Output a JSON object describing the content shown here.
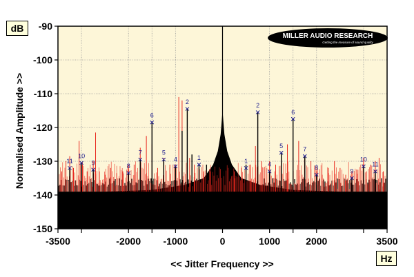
{
  "chart_data": {
    "type": "line",
    "y_unit": "dB",
    "x_unit": "Hz",
    "ylabel": "Normalised Amplitude >>",
    "xlabel": "<< Jitter Frequency >>",
    "xlim": [
      -3500,
      3500
    ],
    "ylim": [
      -150,
      -90
    ],
    "x_ticks": [
      {
        "value": -3500,
        "label": "-3500"
      },
      {
        "value": -2000,
        "label": "-2000"
      },
      {
        "value": -1000,
        "label": "-1000"
      },
      {
        "value": 0,
        "label": "0"
      },
      {
        "value": 1000,
        "label": "1000"
      },
      {
        "value": 2000,
        "label": "2000"
      },
      {
        "value": 3500,
        "label": "3500"
      }
    ],
    "x_minor_ticks": [
      -3000,
      -1500,
      1500,
      3000
    ],
    "y_ticks": [
      {
        "value": -90,
        "label": "-90"
      },
      {
        "value": -100,
        "label": "-100"
      },
      {
        "value": -110,
        "label": "-110"
      },
      {
        "value": -120,
        "label": "-120"
      },
      {
        "value": -130,
        "label": "-130"
      },
      {
        "value": -140,
        "label": "-140"
      },
      {
        "value": -150,
        "label": "-150"
      }
    ],
    "grid": true,
    "plot_bg_color": "#fdf6d8",
    "noise_floor_db": -139,
    "series": [
      {
        "color": "#000000",
        "spectrum": [
          {
            "x": -3500,
            "y": -139
          },
          {
            "x": -2500,
            "y": -139
          },
          {
            "x": -1500,
            "y": -138.5
          },
          {
            "x": -800,
            "y": -137
          },
          {
            "x": -400,
            "y": -135
          },
          {
            "x": -200,
            "y": -131
          },
          {
            "x": -100,
            "y": -127
          },
          {
            "x": -40,
            "y": -122
          },
          {
            "x": 0,
            "y": -115
          },
          {
            "x": 40,
            "y": -122
          },
          {
            "x": 100,
            "y": -127
          },
          {
            "x": 200,
            "y": -131
          },
          {
            "x": 400,
            "y": -135
          },
          {
            "x": 800,
            "y": -137
          },
          {
            "x": 1500,
            "y": -138.5
          },
          {
            "x": 2500,
            "y": -139
          },
          {
            "x": 3500,
            "y": -139
          }
        ],
        "spikes": [
          {
            "x": 0,
            "y": -90
          },
          {
            "x": -750,
            "y": -114.5
          },
          {
            "x": 750,
            "y": -115.5
          },
          {
            "x": -1500,
            "y": -118.5
          },
          {
            "x": 1500,
            "y": -117.5
          },
          {
            "x": -1750,
            "y": -129.5
          },
          {
            "x": 1750,
            "y": -128.5
          },
          {
            "x": -1000,
            "y": -131.5
          },
          {
            "x": -1250,
            "y": -129.5
          },
          {
            "x": 1250,
            "y": -127.5
          },
          {
            "x": 1000,
            "y": -133
          },
          {
            "x": -500,
            "y": -131
          },
          {
            "x": 500,
            "y": -131
          },
          {
            "x": -3000,
            "y": -130.5
          },
          {
            "x": 3000,
            "y": -131.5
          },
          {
            "x": -2000,
            "y": -133.5
          },
          {
            "x": 2000,
            "y": -134
          },
          {
            "x": -3250,
            "y": -132
          },
          {
            "x": 3250,
            "y": -133
          },
          {
            "x": -2750,
            "y": -132.5
          },
          {
            "x": 2750,
            "y": -135
          },
          {
            "x": -860,
            "y": -121
          },
          {
            "x": -650,
            "y": -128
          },
          {
            "x": -340,
            "y": -131
          }
        ]
      },
      {
        "color": "#e8281e",
        "spikes": [
          {
            "x": -3420,
            "y": -133
          },
          {
            "x": -3330,
            "y": -130
          },
          {
            "x": -3250,
            "y": -128.5
          },
          {
            "x": -3170,
            "y": -132
          },
          {
            "x": -3050,
            "y": -124
          },
          {
            "x": -2980,
            "y": -131
          },
          {
            "x": -2880,
            "y": -133
          },
          {
            "x": -2750,
            "y": -130
          },
          {
            "x": -2700,
            "y": -121.5
          },
          {
            "x": -2620,
            "y": -133
          },
          {
            "x": -2500,
            "y": -134
          },
          {
            "x": -2380,
            "y": -132
          },
          {
            "x": -2250,
            "y": -133.5
          },
          {
            "x": -2120,
            "y": -133
          },
          {
            "x": -2000,
            "y": -131
          },
          {
            "x": -1880,
            "y": -131
          },
          {
            "x": -1750,
            "y": -126
          },
          {
            "x": -1620,
            "y": -122.5
          },
          {
            "x": -1500,
            "y": -125
          },
          {
            "x": -1380,
            "y": -132
          },
          {
            "x": -1250,
            "y": -129
          },
          {
            "x": -1120,
            "y": -131
          },
          {
            "x": -1000,
            "y": -131
          },
          {
            "x": -930,
            "y": -111
          },
          {
            "x": -860,
            "y": -112
          },
          {
            "x": -700,
            "y": -129
          },
          {
            "x": -600,
            "y": -131
          },
          {
            "x": -500,
            "y": -132
          },
          {
            "x": -400,
            "y": -133
          },
          {
            "x": -250,
            "y": -133
          },
          {
            "x": 250,
            "y": -133
          },
          {
            "x": 400,
            "y": -132
          },
          {
            "x": 500,
            "y": -132
          },
          {
            "x": 600,
            "y": -131
          },
          {
            "x": 700,
            "y": -125.5
          },
          {
            "x": 830,
            "y": -130
          },
          {
            "x": 1000,
            "y": -130
          },
          {
            "x": 1130,
            "y": -131
          },
          {
            "x": 1250,
            "y": -130
          },
          {
            "x": 1380,
            "y": -125
          },
          {
            "x": 1500,
            "y": -129
          },
          {
            "x": 1620,
            "y": -124
          },
          {
            "x": 1750,
            "y": -131
          },
          {
            "x": 1880,
            "y": -130
          },
          {
            "x": 2000,
            "y": -133
          },
          {
            "x": 2120,
            "y": -134
          },
          {
            "x": 2250,
            "y": -132
          },
          {
            "x": 2380,
            "y": -130
          },
          {
            "x": 2500,
            "y": -132
          },
          {
            "x": 2620,
            "y": -134
          },
          {
            "x": 2750,
            "y": -133
          },
          {
            "x": 2880,
            "y": -132.5
          },
          {
            "x": 3000,
            "y": -129
          },
          {
            "x": 3060,
            "y": -133
          },
          {
            "x": 3150,
            "y": -131
          },
          {
            "x": 3250,
            "y": -130
          },
          {
            "x": 3330,
            "y": -129
          },
          {
            "x": 3420,
            "y": -133
          }
        ]
      }
    ],
    "harmonic_labels": [
      {
        "label": "11",
        "x": -3250,
        "y": -132
      },
      {
        "label": "10",
        "x": -3000,
        "y": -130.5
      },
      {
        "label": "9",
        "x": -2750,
        "y": -132.5
      },
      {
        "label": "8",
        "x": -2000,
        "y": -133.5
      },
      {
        "label": "7",
        "x": -1750,
        "y": -129.5
      },
      {
        "label": "6",
        "x": -1500,
        "y": -118.5
      },
      {
        "label": "5",
        "x": -1250,
        "y": -129.5
      },
      {
        "label": "4",
        "x": -1000,
        "y": -131.5
      },
      {
        "label": "2",
        "x": -750,
        "y": -114.5
      },
      {
        "label": "1",
        "x": -500,
        "y": -131
      },
      {
        "label": "1",
        "x": 500,
        "y": -132
      },
      {
        "label": "2",
        "x": 750,
        "y": -115.5
      },
      {
        "label": "4",
        "x": 1000,
        "y": -133
      },
      {
        "label": "5",
        "x": 1250,
        "y": -127.5
      },
      {
        "label": "6",
        "x": 1500,
        "y": -117.5
      },
      {
        "label": "7",
        "x": 1750,
        "y": -128.5
      },
      {
        "label": "8",
        "x": 2000,
        "y": -134
      },
      {
        "label": "9",
        "x": 2750,
        "y": -135
      },
      {
        "label": "10",
        "x": 3000,
        "y": -131.5
      },
      {
        "label": "11",
        "x": 3250,
        "y": -133
      }
    ]
  },
  "logo": {
    "text": "MILLER AUDIO RESEARCH",
    "tagline": "Getting the measure of sound quality"
  }
}
